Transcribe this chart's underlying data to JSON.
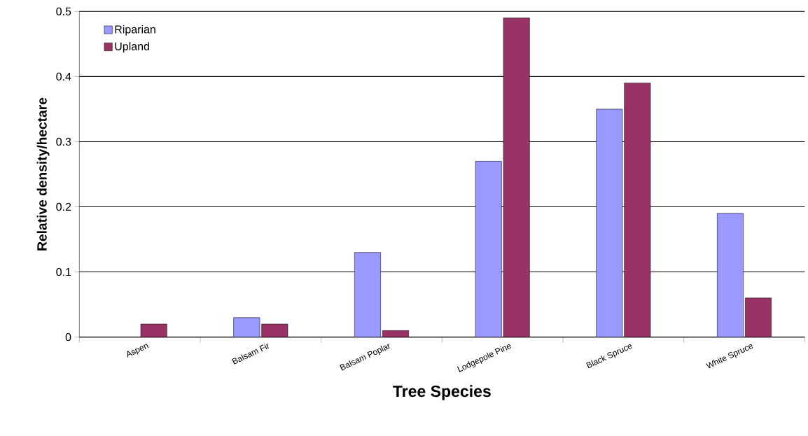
{
  "chart_data": {
    "type": "bar",
    "xlabel": "Tree Species",
    "ylabel": "Relative density/hectare",
    "categories": [
      "Aspen",
      "Balsam Fir",
      "Balsam Poplar",
      "Lodgepole Pine",
      "Black Spruce",
      "White Spruce"
    ],
    "series": [
      {
        "name": "Riparian",
        "color": "#9999ff",
        "values": [
          null,
          0.03,
          0.13,
          0.27,
          0.35,
          0.19
        ]
      },
      {
        "name": "Upland",
        "color": "#993366",
        "values": [
          0.02,
          0.02,
          0.01,
          0.49,
          0.39,
          0.06
        ]
      }
    ],
    "ylim": [
      0,
      0.5
    ],
    "yticks": [
      0,
      0.1,
      0.2,
      0.3,
      0.4,
      0.5
    ],
    "grid": "y",
    "legend": "top left"
  }
}
